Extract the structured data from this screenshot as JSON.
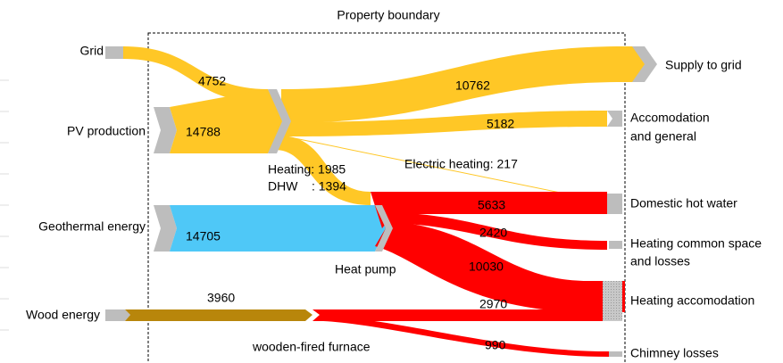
{
  "diagram": {
    "title": "Property boundary",
    "sources": [
      {
        "label": "Grid"
      },
      {
        "label": "PV production"
      },
      {
        "label": "Geothermal energy"
      },
      {
        "label": "Wood energy"
      }
    ],
    "sinks": [
      {
        "lines": [
          "Supply to grid"
        ]
      },
      {
        "lines": [
          "Accomodation",
          "and general"
        ]
      },
      {
        "lines": [
          "Domestic hot water"
        ]
      },
      {
        "lines": [
          "Heating common space",
          "and losses"
        ]
      },
      {
        "lines": [
          "Heating accomodation"
        ]
      },
      {
        "lines": [
          "Chimney losses"
        ]
      }
    ],
    "converters": [
      {
        "label": "Heat pump"
      },
      {
        "label": "wooden-fired furnace"
      }
    ],
    "flows": [
      {
        "value": 4752
      },
      {
        "value": 14788
      },
      {
        "value": 10762
      },
      {
        "value": 5182
      },
      {
        "label": "Electric heating: 217"
      },
      {
        "label": "Heating: 1985"
      },
      {
        "label": "DHW    : 1394"
      },
      {
        "value": 14705
      },
      {
        "value": 5633
      },
      {
        "value": 2420
      },
      {
        "value": 10030
      },
      {
        "value": 3960
      },
      {
        "value": 2970
      },
      {
        "value": 990
      }
    ]
  }
}
